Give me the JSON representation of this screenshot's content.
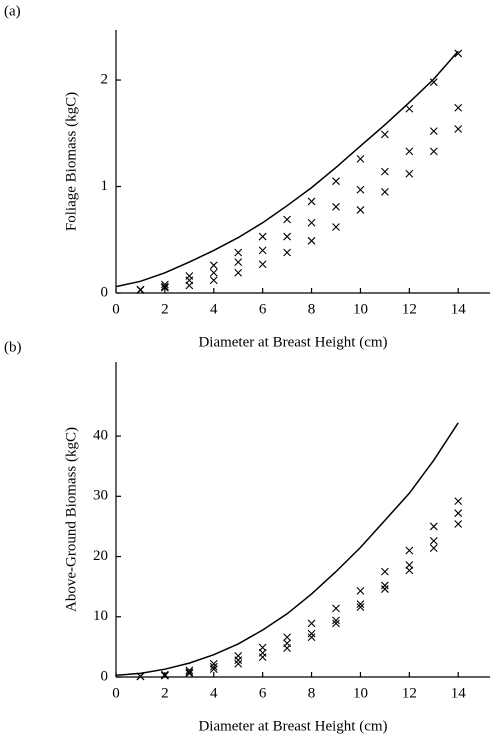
{
  "chart_data": [
    {
      "type": "line",
      "label": "(a)",
      "xlabel": "Diameter at Breast Height (cm)",
      "ylabel": "Foliage Biomass (kgC)",
      "xlim": [
        0,
        15.3
      ],
      "xticks": [
        0,
        2,
        4,
        6,
        8,
        10,
        12,
        14
      ],
      "ylim": [
        0,
        2.47
      ],
      "yticks": [
        0,
        1,
        2
      ],
      "series": [
        {
          "style": "line",
          "color": "#000000",
          "x": [
            0,
            1,
            2,
            3,
            4,
            5,
            6,
            7,
            8,
            9,
            10,
            11,
            12,
            13,
            14
          ],
          "values": [
            0.06,
            0.11,
            0.19,
            0.29,
            0.4,
            0.52,
            0.66,
            0.82,
            0.99,
            1.18,
            1.38,
            1.58,
            1.79,
            2.01,
            2.27
          ]
        },
        {
          "style": "marker",
          "color": "#000000",
          "x": [
            1,
            2,
            3,
            4,
            5,
            6,
            7,
            8,
            9,
            10,
            11,
            12,
            13,
            14
          ],
          "values": [
            0.03,
            0.08,
            0.16,
            0.26,
            0.38,
            0.53,
            0.69,
            0.86,
            1.05,
            1.26,
            1.49,
            1.73,
            1.98,
            2.25
          ]
        },
        {
          "style": "marker",
          "color": "#000000",
          "x": [
            1,
            2,
            3,
            4,
            5,
            6,
            7,
            8,
            9,
            10,
            11,
            12,
            13,
            14
          ],
          "values": [
            0.03,
            0.06,
            0.12,
            0.19,
            0.29,
            0.4,
            0.53,
            0.66,
            0.81,
            0.97,
            1.14,
            1.33,
            1.52,
            1.74
          ]
        },
        {
          "style": "marker",
          "color": "#000000",
          "x": [
            1,
            2,
            3,
            4,
            5,
            6,
            7,
            8,
            9,
            10,
            11,
            12,
            13,
            14
          ],
          "values": [
            0.03,
            0.05,
            0.07,
            0.12,
            0.19,
            0.27,
            0.38,
            0.49,
            0.62,
            0.78,
            0.95,
            1.12,
            1.33,
            1.54
          ]
        }
      ]
    },
    {
      "type": "line",
      "label": "(b)",
      "xlabel": "Diameter at Breast Height (cm)",
      "ylabel": "Above-Ground Biomass (kgC)",
      "xlim": [
        0,
        15.3
      ],
      "xticks": [
        0,
        2,
        4,
        6,
        8,
        10,
        12,
        14
      ],
      "ylim": [
        0,
        52.3
      ],
      "yticks": [
        0,
        10,
        20,
        30,
        40
      ],
      "series": [
        {
          "style": "line",
          "color": "#000000",
          "x": [
            0,
            1,
            2,
            3,
            4,
            5,
            6,
            7,
            8,
            9,
            10,
            11,
            12,
            13,
            14
          ],
          "values": [
            0.3,
            0.6,
            1.3,
            2.3,
            3.7,
            5.5,
            7.8,
            10.5,
            13.8,
            17.5,
            21.5,
            26,
            30.5,
            36,
            42.2
          ]
        },
        {
          "style": "marker",
          "color": "#000000",
          "x": [
            1,
            2,
            3,
            4,
            5,
            6,
            7,
            8,
            9,
            10,
            11,
            12,
            13,
            14
          ],
          "values": [
            0.1,
            0.4,
            1.1,
            2.2,
            3.5,
            4.9,
            6.6,
            8.9,
            11.4,
            14.3,
            17.5,
            21.0,
            25.0,
            29.2
          ]
        },
        {
          "style": "marker",
          "color": "#000000",
          "x": [
            1,
            2,
            3,
            4,
            5,
            6,
            7,
            8,
            9,
            10,
            11,
            12,
            13,
            14
          ],
          "values": [
            0.1,
            0.3,
            0.8,
            1.7,
            2.8,
            4.0,
            5.6,
            7.2,
            9.4,
            12.1,
            15.2,
            18.6,
            22.6,
            27.2
          ]
        },
        {
          "style": "marker",
          "color": "#000000",
          "x": [
            1,
            2,
            3,
            4,
            5,
            6,
            7,
            8,
            9,
            10,
            11,
            12,
            13,
            14
          ],
          "values": [
            0.1,
            0.2,
            0.6,
            1.3,
            2.2,
            3.3,
            4.8,
            6.6,
            8.9,
            11.6,
            14.6,
            17.7,
            21.4,
            25.4
          ]
        }
      ]
    }
  ]
}
